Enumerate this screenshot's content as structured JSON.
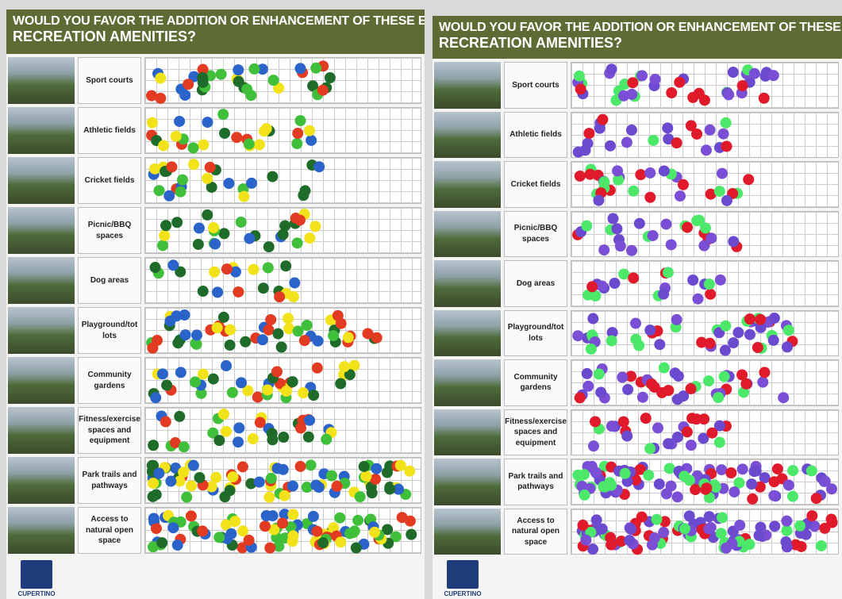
{
  "panels": [
    {
      "title_line1": "WOULD YOU FAVOR THE ADDITION OR ENHANCEMENT OF THESE EXISTING",
      "title_line2": "RECREATION AMENITIES?",
      "rows": [
        "Sport courts",
        "Athletic fields",
        "Cricket fields",
        "Picnic/BBQ spaces",
        "Dog areas",
        "Playground/tot lots",
        "Community gardens",
        "Fitness/exercise spaces and equipment",
        "Park trails and pathways",
        "Access to natural open space"
      ],
      "logo": "CUPERTINO"
    },
    {
      "title_line1": "WOULD YOU FAVOR THE ADDITION OR ENHANCEMENT OF THESE EXISTING",
      "title_line2": "RECREATION AMENITIES?",
      "rows": [
        "Sport courts",
        "Athletic fields",
        "Cricket fields",
        "Picnic/BBQ spaces",
        "Dog areas",
        "Playground/tot lots",
        "Community gardens",
        "Fitness/exercise spaces and equipment",
        "Park trails and pathways",
        "Access to natural open space"
      ],
      "logo": "CUPERTINO"
    }
  ]
}
